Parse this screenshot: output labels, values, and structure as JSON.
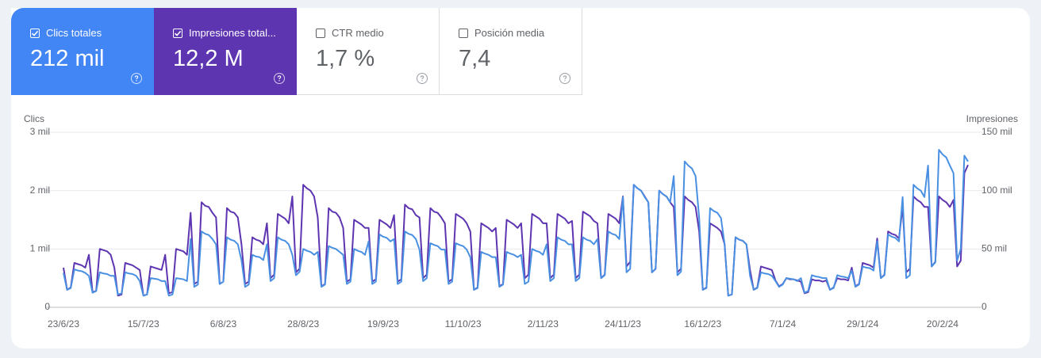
{
  "cards": [
    {
      "label": "Clics totales",
      "value": "212 mil",
      "checked": true,
      "color": "#4285f4"
    },
    {
      "label": "Impresiones total...",
      "value": "12,2 M",
      "checked": true,
      "color": "#5e35b1"
    },
    {
      "label": "CTR medio",
      "value": "1,7 %",
      "checked": false
    },
    {
      "label": "Posición media",
      "value": "7,4",
      "checked": false
    }
  ],
  "chart_data": {
    "type": "line",
    "ylabel": "Clics",
    "y2label": "Impresiones",
    "categories": [
      "23/6/23",
      null,
      null,
      null,
      null,
      null,
      null,
      null,
      null,
      null,
      null,
      null,
      null,
      null,
      null,
      null,
      null,
      null,
      null,
      null,
      null,
      null,
      "15/7/23",
      null,
      null,
      null,
      null,
      null,
      null,
      null,
      null,
      null,
      null,
      null,
      null,
      null,
      null,
      null,
      null,
      null,
      null,
      null,
      null,
      null,
      "6/8/23",
      null,
      null,
      null,
      null,
      null,
      null,
      null,
      null,
      null,
      null,
      null,
      null,
      null,
      null,
      null,
      null,
      null,
      null,
      null,
      null,
      null,
      "28/8/23",
      null,
      null,
      null,
      null,
      null,
      null,
      null,
      null,
      null,
      null,
      null,
      null,
      null,
      null,
      null,
      null,
      null,
      null,
      null,
      null,
      null,
      "19/9/23",
      null,
      null,
      null,
      null,
      null,
      null,
      null,
      null,
      null,
      null,
      null,
      null,
      null,
      null,
      null,
      null,
      null,
      null,
      null,
      null,
      null,
      "11/10/23",
      null,
      null,
      null,
      null,
      null,
      null,
      null,
      null,
      null,
      null,
      null,
      null,
      null,
      null,
      null,
      null,
      null,
      null,
      null,
      null,
      null,
      "2/11/23",
      null,
      null,
      null,
      null,
      null,
      null,
      null,
      null,
      null,
      null,
      null,
      null,
      null,
      null,
      null,
      null,
      null,
      null,
      null,
      null,
      null,
      "24/11/23",
      null,
      null,
      null,
      null,
      null,
      null,
      null,
      null,
      null,
      null,
      null,
      null,
      null,
      null,
      null,
      null,
      null,
      null,
      null,
      null,
      null,
      "16/12/23",
      null,
      null,
      null,
      null,
      null,
      null,
      null,
      null,
      null,
      null,
      null,
      null,
      null,
      null,
      null,
      null,
      null,
      null,
      null,
      null,
      null,
      "7/1/24",
      null,
      null,
      null,
      null,
      null,
      null,
      null,
      null,
      null,
      null,
      null,
      null,
      null,
      null,
      null,
      null,
      null,
      null,
      null,
      null,
      null,
      "29/1/24",
      null,
      null,
      null,
      null,
      null,
      null,
      null,
      null,
      null,
      null,
      null,
      null,
      null,
      null,
      null,
      null,
      null,
      null,
      null,
      null,
      null,
      "20/2/24",
      null,
      null,
      null,
      null,
      null,
      null,
      null
    ],
    "series": [
      {
        "color": "#4a90e2",
        "values": [
          590,
          300,
          330,
          650,
          630,
          620,
          590,
          540,
          250,
          280,
          600,
          580,
          570,
          540,
          540,
          220,
          240,
          600,
          580,
          570,
          540,
          450,
          200,
          220,
          500,
          490,
          480,
          450,
          450,
          200,
          220,
          500,
          490,
          480,
          450,
          1170,
          350,
          390,
          1300,
          1260,
          1240,
          1170,
          1080,
          400,
          440,
          1200,
          1160,
          1140,
          1080,
          810,
          350,
          390,
          900,
          870,
          860,
          810,
          1080,
          450,
          500,
          1200,
          1160,
          1140,
          1080,
          900,
          550,
          610,
          1000,
          970,
          950,
          900,
          950,
          350,
          390,
          1050,
          1020,
          1000,
          950,
          900,
          400,
          440,
          1000,
          970,
          950,
          900,
          1130,
          400,
          440,
          1250,
          1210,
          1190,
          1130,
          1170,
          400,
          440,
          1300,
          1260,
          1240,
          1170,
          990,
          450,
          500,
          1100,
          1070,
          1050,
          990,
          990,
          400,
          440,
          1100,
          1070,
          1050,
          990,
          860,
          300,
          330,
          950,
          920,
          900,
          860,
          860,
          350,
          390,
          950,
          920,
          900,
          860,
          900,
          400,
          440,
          1000,
          970,
          950,
          900,
          1080,
          450,
          500,
          1200,
          1160,
          1140,
          1080,
          1080,
          450,
          500,
          1200,
          1160,
          1140,
          1080,
          1170,
          500,
          550,
          1300,
          1260,
          1240,
          1170,
          1890,
          600,
          660,
          2100,
          2040,
          2000,
          1890,
          1800,
          600,
          660,
          2000,
          1940,
          1900,
          1800,
          2250,
          550,
          610,
          2500,
          2430,
          2380,
          2250,
          1530,
          300,
          330,
          1700,
          1650,
          1620,
          1530,
          1080,
          200,
          220,
          1200,
          1160,
          1140,
          1080,
          540,
          300,
          330,
          600,
          580,
          570,
          540,
          450,
          350,
          390,
          500,
          490,
          480,
          450,
          500,
          250,
          280,
          550,
          530,
          520,
          500,
          500,
          300,
          330,
          550,
          530,
          520,
          500,
          630,
          350,
          390,
          700,
          680,
          670,
          630,
          1130,
          500,
          550,
          1250,
          1210,
          1190,
          1130,
          1890,
          500,
          550,
          2100,
          2040,
          2000,
          1890,
          2430,
          700,
          770,
          2700,
          2620,
          2570,
          2430,
          2300,
          800,
          1000,
          2600,
          2500
        ]
      },
      {
        "color": "#5e35b1",
        "axis": "y2",
        "values": [
          34000,
          15000,
          17000,
          38000,
          37000,
          36000,
          34000,
          45000,
          13000,
          14000,
          50000,
          49000,
          48000,
          45000,
          34000,
          10000,
          11000,
          38000,
          37000,
          36000,
          34000,
          32000,
          10000,
          11000,
          35000,
          34000,
          33000,
          32000,
          45000,
          12000,
          13000,
          50000,
          49000,
          48000,
          45000,
          81000,
          20000,
          22000,
          90000,
          87000,
          86000,
          81000,
          77000,
          20000,
          22000,
          85000,
          82000,
          81000,
          77000,
          54000,
          20000,
          22000,
          60000,
          58000,
          57000,
          54000,
          72000,
          25000,
          28000,
          80000,
          78000,
          76000,
          72000,
          95000,
          30000,
          33000,
          105000,
          102000,
          100000,
          95000,
          77000,
          18000,
          20000,
          85000,
          82000,
          81000,
          77000,
          68000,
          22000,
          24000,
          75000,
          73000,
          71000,
          68000,
          68000,
          22000,
          24000,
          75000,
          73000,
          71000,
          68000,
          79000,
          22000,
          24000,
          88000,
          85000,
          84000,
          79000,
          77000,
          25000,
          28000,
          85000,
          82000,
          81000,
          77000,
          72000,
          22000,
          24000,
          80000,
          78000,
          76000,
          72000,
          65000,
          15000,
          17000,
          72000,
          70000,
          68000,
          65000,
          68000,
          18000,
          20000,
          75000,
          73000,
          71000,
          68000,
          72000,
          25000,
          28000,
          80000,
          78000,
          76000,
          72000,
          72000,
          25000,
          28000,
          80000,
          78000,
          76000,
          72000,
          74000,
          25000,
          28000,
          82000,
          80000,
          78000,
          74000,
          72000,
          25000,
          28000,
          80000,
          78000,
          76000,
          72000,
          95000,
          35000,
          39000,
          105000,
          102000,
          100000,
          95000,
          90000,
          30000,
          33000,
          100000,
          97000,
          95000,
          90000,
          86000,
          30000,
          33000,
          95000,
          92000,
          90000,
          86000,
          65000,
          15000,
          17000,
          72000,
          70000,
          68000,
          65000,
          54000,
          10000,
          11000,
          60000,
          58000,
          57000,
          54000,
          32000,
          15000,
          17000,
          35000,
          34000,
          33000,
          32000,
          23000,
          18000,
          20000,
          25000,
          24000,
          24000,
          23000,
          22000,
          12000,
          13000,
          24000,
          23000,
          23000,
          22000,
          23000,
          15000,
          17000,
          25000,
          24000,
          24000,
          23000,
          34000,
          18000,
          20000,
          38000,
          37000,
          36000,
          34000,
          59000,
          25000,
          28000,
          65000,
          63000,
          62000,
          59000,
          86000,
          30000,
          33000,
          95000,
          92000,
          90000,
          86000,
          86000,
          35000,
          39000,
          95000,
          92000,
          90000,
          86000,
          92000,
          35000,
          40000,
          115000,
          122000
        ]
      }
    ],
    "ylim": [
      0,
      3000
    ],
    "yticks": [
      0,
      {
        "value": 1000,
        "label": "1 mil"
      },
      {
        "value": 2000,
        "label": "2 mil"
      },
      {
        "value": 3000,
        "label": "3 mil"
      }
    ],
    "y2lim": [
      0,
      150000
    ],
    "y2ticks": [
      0,
      {
        "value": 50000,
        "label": "50 mil"
      },
      {
        "value": 100000,
        "label": "100 mil"
      },
      {
        "value": 150000,
        "label": "150 mil"
      }
    ],
    "grid": true
  }
}
